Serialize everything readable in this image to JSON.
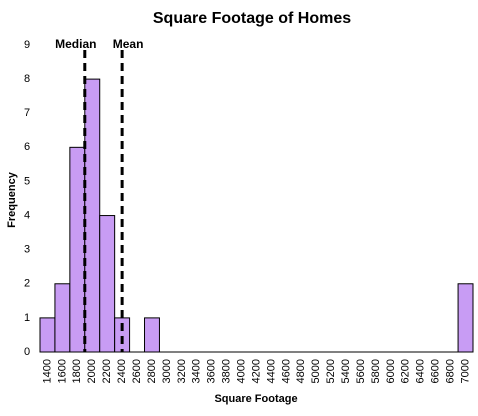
{
  "chart_data": {
    "type": "histogram",
    "title": "Square Footage of Homes",
    "x_label": "Square Footage",
    "y_label": "Frequency",
    "categories": [
      "1400",
      "1600",
      "1800",
      "2000",
      "2200",
      "2400",
      "2600",
      "2800",
      "3000",
      "3200",
      "3400",
      "3600",
      "3800",
      "4000",
      "4200",
      "4400",
      "4600",
      "4800",
      "5000",
      "5200",
      "5400",
      "5600",
      "5800",
      "6000",
      "6200",
      "6400",
      "6600",
      "6800",
      "7000"
    ],
    "values": [
      1,
      2,
      6,
      8,
      4,
      1,
      0,
      1,
      0,
      0,
      0,
      0,
      0,
      0,
      0,
      0,
      0,
      0,
      0,
      0,
      0,
      0,
      0,
      0,
      0,
      0,
      0,
      0,
      2
    ],
    "color": "#c89cf4",
    "ylim": [
      0,
      9
    ],
    "yticks": [
      0,
      1,
      2,
      3,
      4,
      5,
      6,
      7,
      8,
      9
    ],
    "grid": false,
    "reference_lines": [
      {
        "label": "Median",
        "value": 1900
      },
      {
        "label": "Mean",
        "value": 2400
      }
    ]
  }
}
